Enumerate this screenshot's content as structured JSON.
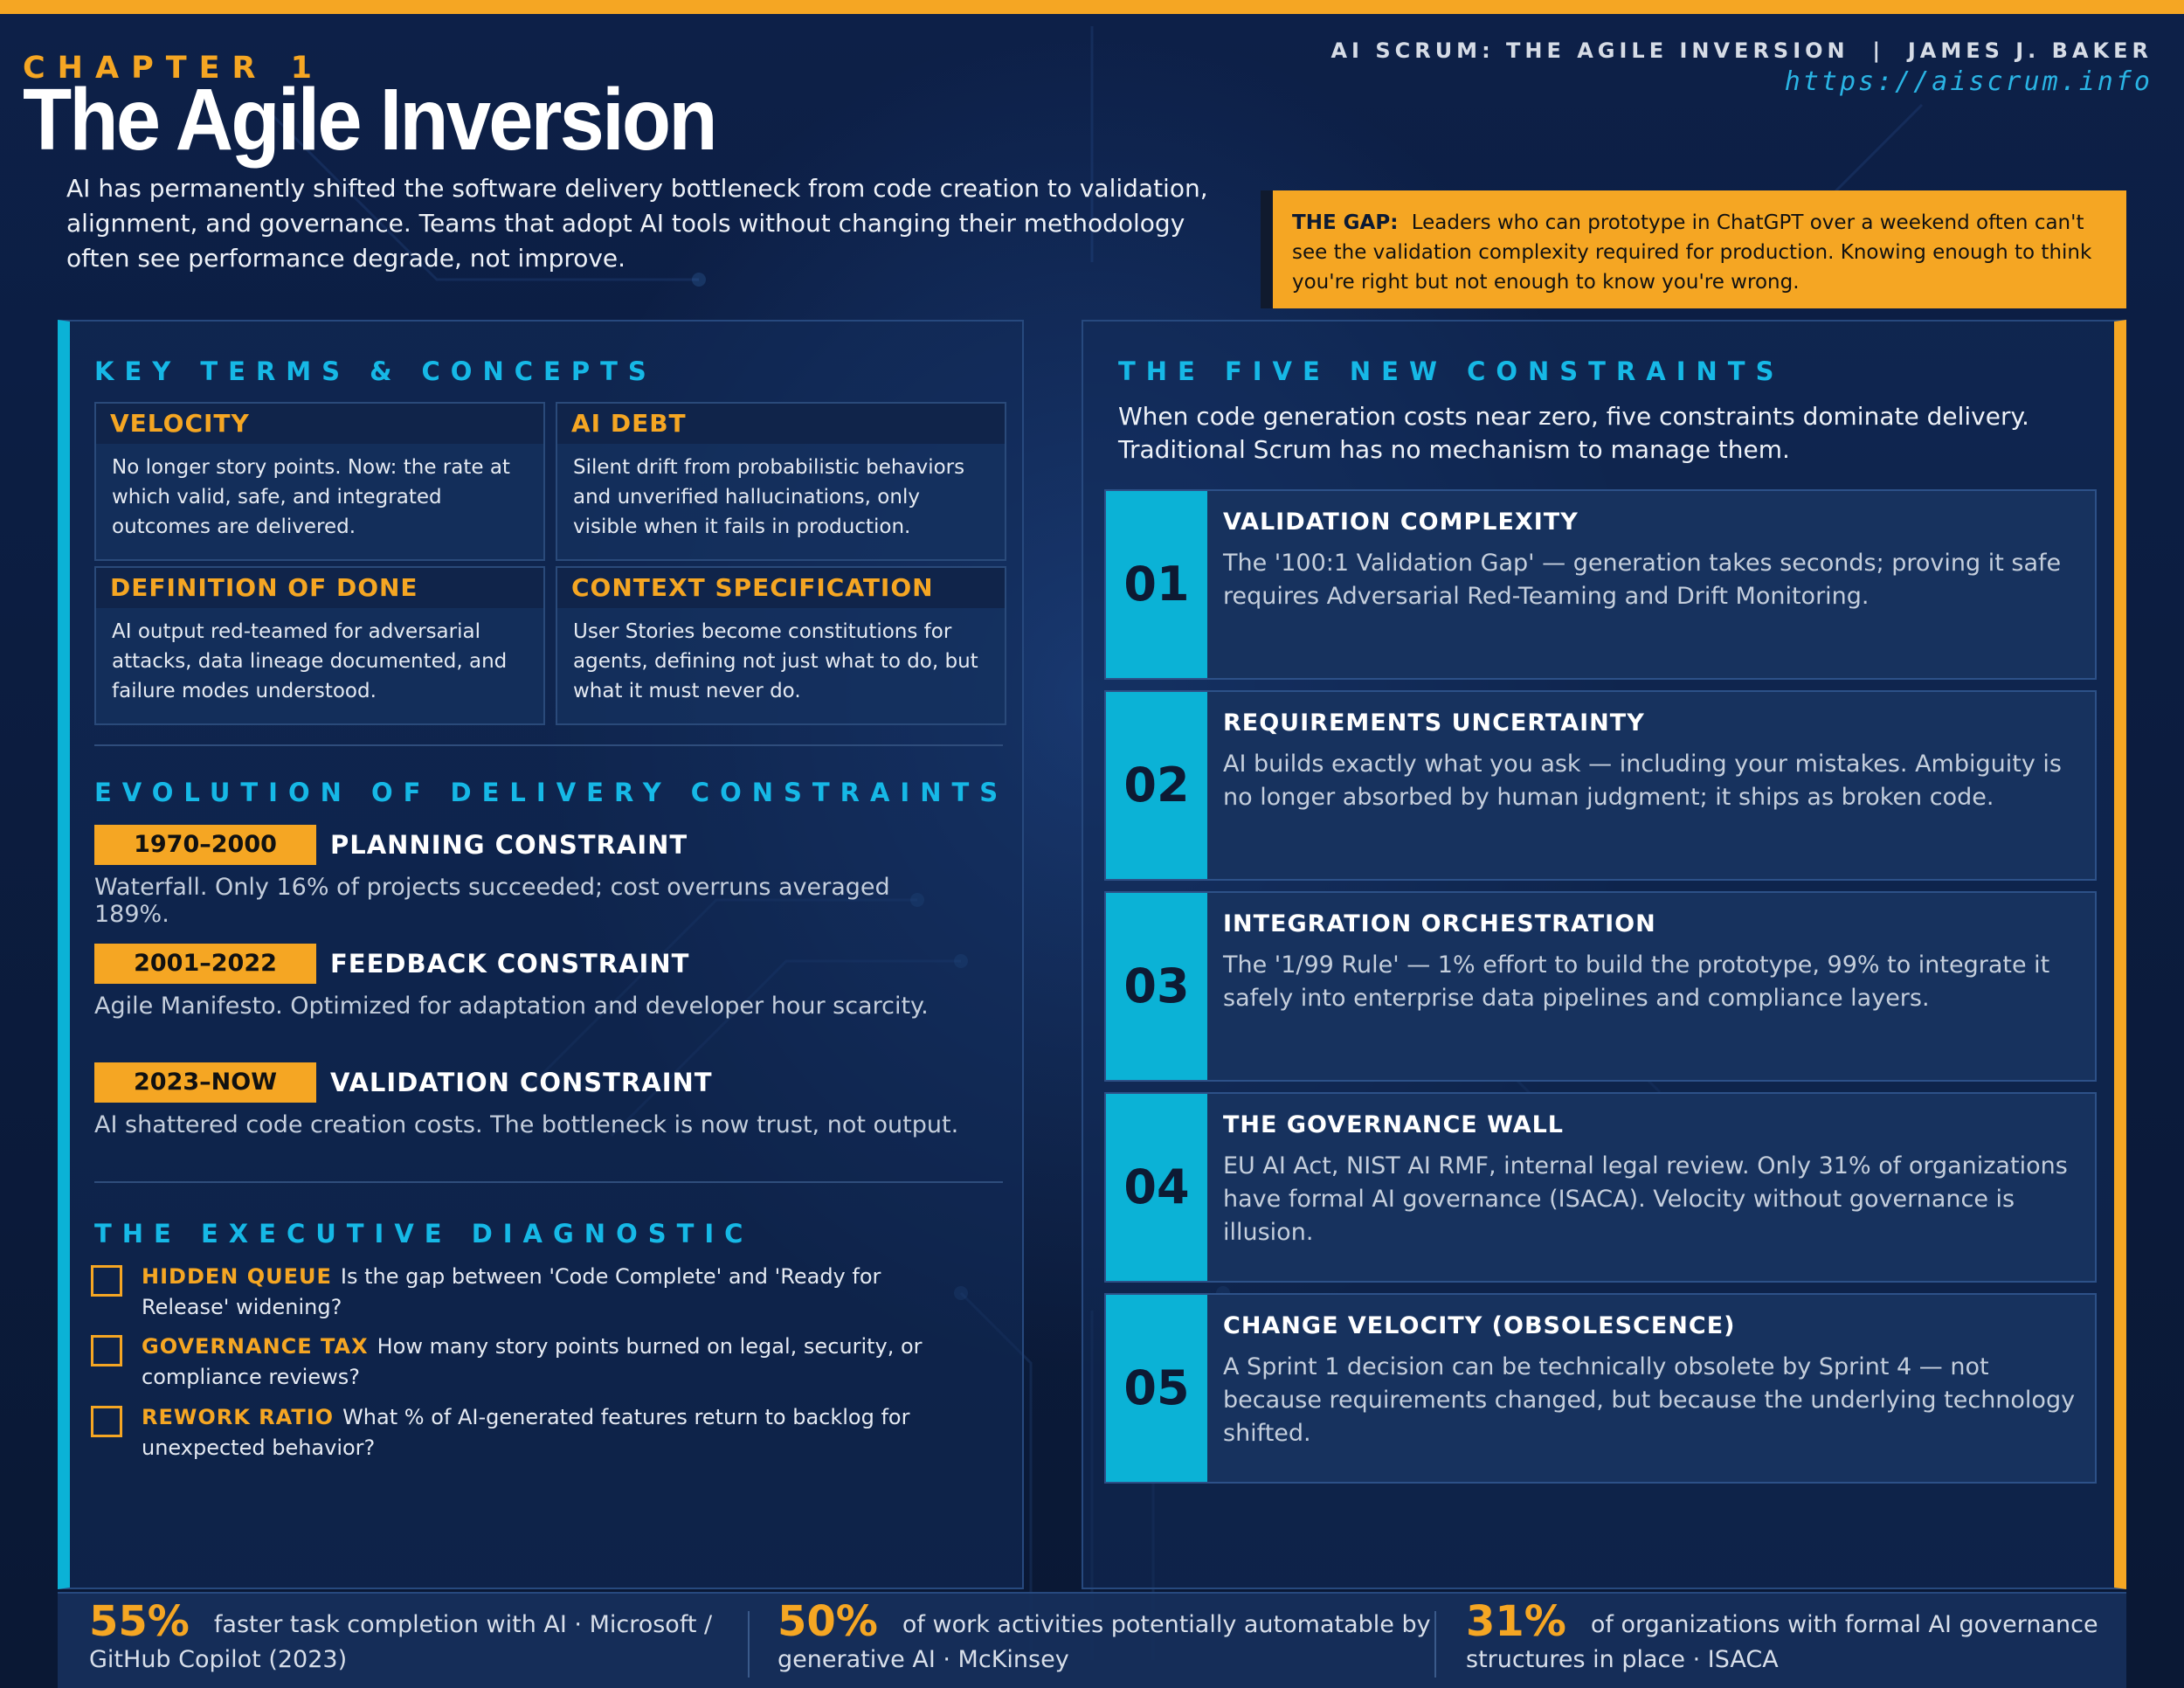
{
  "header": {
    "chapter": "CHAPTER 1",
    "title": "The Agile Inversion",
    "byline": "AI SCRUM: THE AGILE INVERSION  |  JAMES J. BAKER",
    "url": "https://aiscrum.info",
    "intro": "AI has permanently shifted the software delivery bottleneck from code creation to validation, alignment, and governance. Teams that adopt AI tools without changing their methodology often see performance degrade, not improve."
  },
  "gap": {
    "label": "THE GAP:",
    "text": "Leaders who can prototype in ChatGPT over a weekend often can't see the validation complexity required for production. Knowing enough to think you're right but not enough to know you're wrong."
  },
  "key_terms": {
    "heading": "KEY TERMS & CONCEPTS",
    "items": [
      {
        "title": "VELOCITY",
        "text": "No longer story points. Now: the rate at which valid, safe, and integrated outcomes are delivered."
      },
      {
        "title": "AI DEBT",
        "text": "Silent drift from probabilistic behaviors and unverified hallucinations, only visible when it fails in production."
      },
      {
        "title": "DEFINITION OF DONE",
        "text": "AI output red-teamed for adversarial attacks, data lineage documented, and failure modes understood."
      },
      {
        "title": "CONTEXT SPECIFICATION",
        "text": "User Stories become constitutions for agents, defining not just what to do, but what it must never do."
      }
    ]
  },
  "evolution": {
    "heading": "EVOLUTION OF DELIVERY CONSTRAINTS",
    "eras": [
      {
        "years": "1970–2000",
        "label": "PLANNING CONSTRAINT",
        "text": "Waterfall. Only 16% of projects succeeded; cost overruns averaged 189%."
      },
      {
        "years": "2001–2022",
        "label": "FEEDBACK CONSTRAINT",
        "text": "Agile Manifesto. Optimized for adaptation and developer hour scarcity."
      },
      {
        "years": "2023–NOW",
        "label": "VALIDATION CONSTRAINT",
        "text": "AI shattered code creation costs. The bottleneck is now trust, not output."
      }
    ]
  },
  "diagnostic": {
    "heading": "THE EXECUTIVE DIAGNOSTIC",
    "items": [
      {
        "label": "HIDDEN QUEUE",
        "text": "Is the gap between 'Code Complete' and 'Ready for Release' widening?"
      },
      {
        "label": "GOVERNANCE TAX",
        "text": "How many story points burned on legal, security, or compliance reviews?"
      },
      {
        "label": "REWORK RATIO",
        "text": "What % of AI-generated features return to backlog for unexpected behavior?"
      }
    ]
  },
  "constraints": {
    "heading": "THE FIVE NEW CONSTRAINTS",
    "intro": "When code generation costs near zero, five constraints dominate delivery. Traditional Scrum has no mechanism to manage them.",
    "items": [
      {
        "num": "01",
        "title": "VALIDATION COMPLEXITY",
        "text": "The '100:1 Validation Gap' — generation takes seconds; proving it safe requires Adversarial Red-Teaming and Drift Monitoring."
      },
      {
        "num": "02",
        "title": "REQUIREMENTS UNCERTAINTY",
        "text": "AI builds exactly what you ask — including your mistakes. Ambiguity is no longer absorbed by human judgment; it ships as broken code."
      },
      {
        "num": "03",
        "title": "INTEGRATION ORCHESTRATION",
        "text": "The '1/99 Rule' — 1% effort to build the prototype, 99% to integrate it safely into enterprise data pipelines and compliance layers."
      },
      {
        "num": "04",
        "title": "THE GOVERNANCE WALL",
        "text": "EU AI Act, NIST AI RMF, internal legal review. Only 31% of organizations have formal AI governance (ISACA). Velocity without governance is illusion."
      },
      {
        "num": "05",
        "title": "CHANGE VELOCITY (OBSOLESCENCE)",
        "text": "A Sprint 1 decision can be technically obsolete by Sprint 4 — not because requirements changed, but because the underlying technology shifted."
      }
    ]
  },
  "stats": [
    {
      "pct": "55%",
      "text": "faster task completion with AI  ·  Microsoft / GitHub Copilot (2023)"
    },
    {
      "pct": "50%",
      "text": "of work activities potentially automatable by generative AI  ·  McKinsey"
    },
    {
      "pct": "31%",
      "text": "of organizations with formal AI governance structures in place  ·  ISACA"
    }
  ],
  "colors": {
    "accent": "#f5a623",
    "cyan": "#0bb2d6",
    "background": "#0b1a3a"
  }
}
